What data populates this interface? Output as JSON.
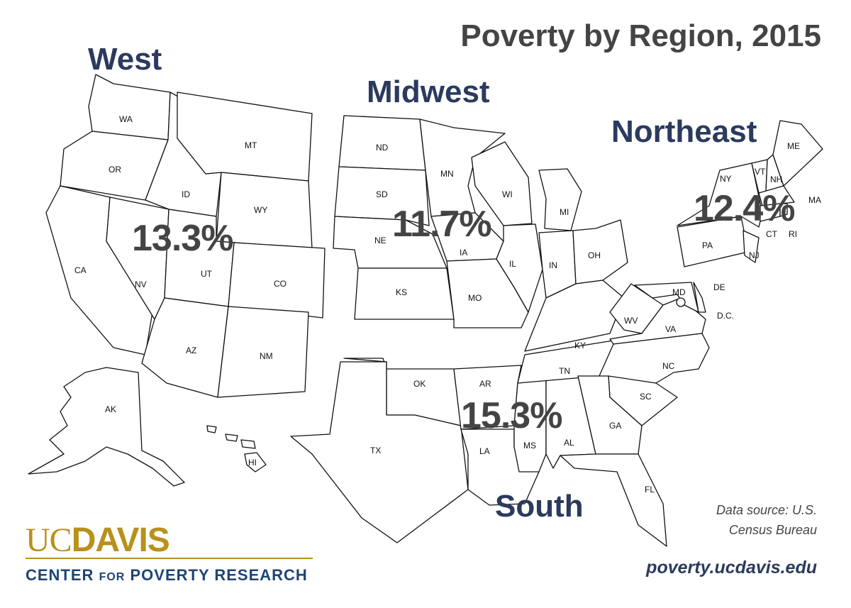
{
  "title": "Poverty by Region, 2015",
  "regions": {
    "west": {
      "name": "West",
      "rate": "13.3%"
    },
    "midwest": {
      "name": "Midwest",
      "rate": "11.7%"
    },
    "northeast": {
      "name": "Northeast",
      "rate": "12.4%"
    },
    "south": {
      "name": "South",
      "rate": "15.3%"
    }
  },
  "states": [
    "WA",
    "OR",
    "CA",
    "NV",
    "ID",
    "MT",
    "WY",
    "UT",
    "CO",
    "AZ",
    "NM",
    "AK",
    "HI",
    "ND",
    "SD",
    "NE",
    "KS",
    "MN",
    "IA",
    "MO",
    "WI",
    "IL",
    "MI",
    "IN",
    "OH",
    "OK",
    "TX",
    "AR",
    "LA",
    "MS",
    "AL",
    "TN",
    "KY",
    "GA",
    "FL",
    "SC",
    "NC",
    "VA",
    "WV",
    "MD",
    "DE",
    "D.C.",
    "ME",
    "VT",
    "NH",
    "NY",
    "MA",
    "CT",
    "RI",
    "PA",
    "NJ"
  ],
  "source": {
    "line1": "Data source: U.S.",
    "line2": "Census Bureau"
  },
  "url": "poverty.ucdavis.edu",
  "logo": {
    "uc": "UC",
    "davis": "DAVIS",
    "center": "CENTER",
    "for": "FOR",
    "rest": "POVERTY RESEARCH"
  },
  "colors": {
    "region": "#2b3a5e",
    "percent": "#444444",
    "logo_gold": "#b8911c",
    "logo_blue": "#1d4575"
  }
}
